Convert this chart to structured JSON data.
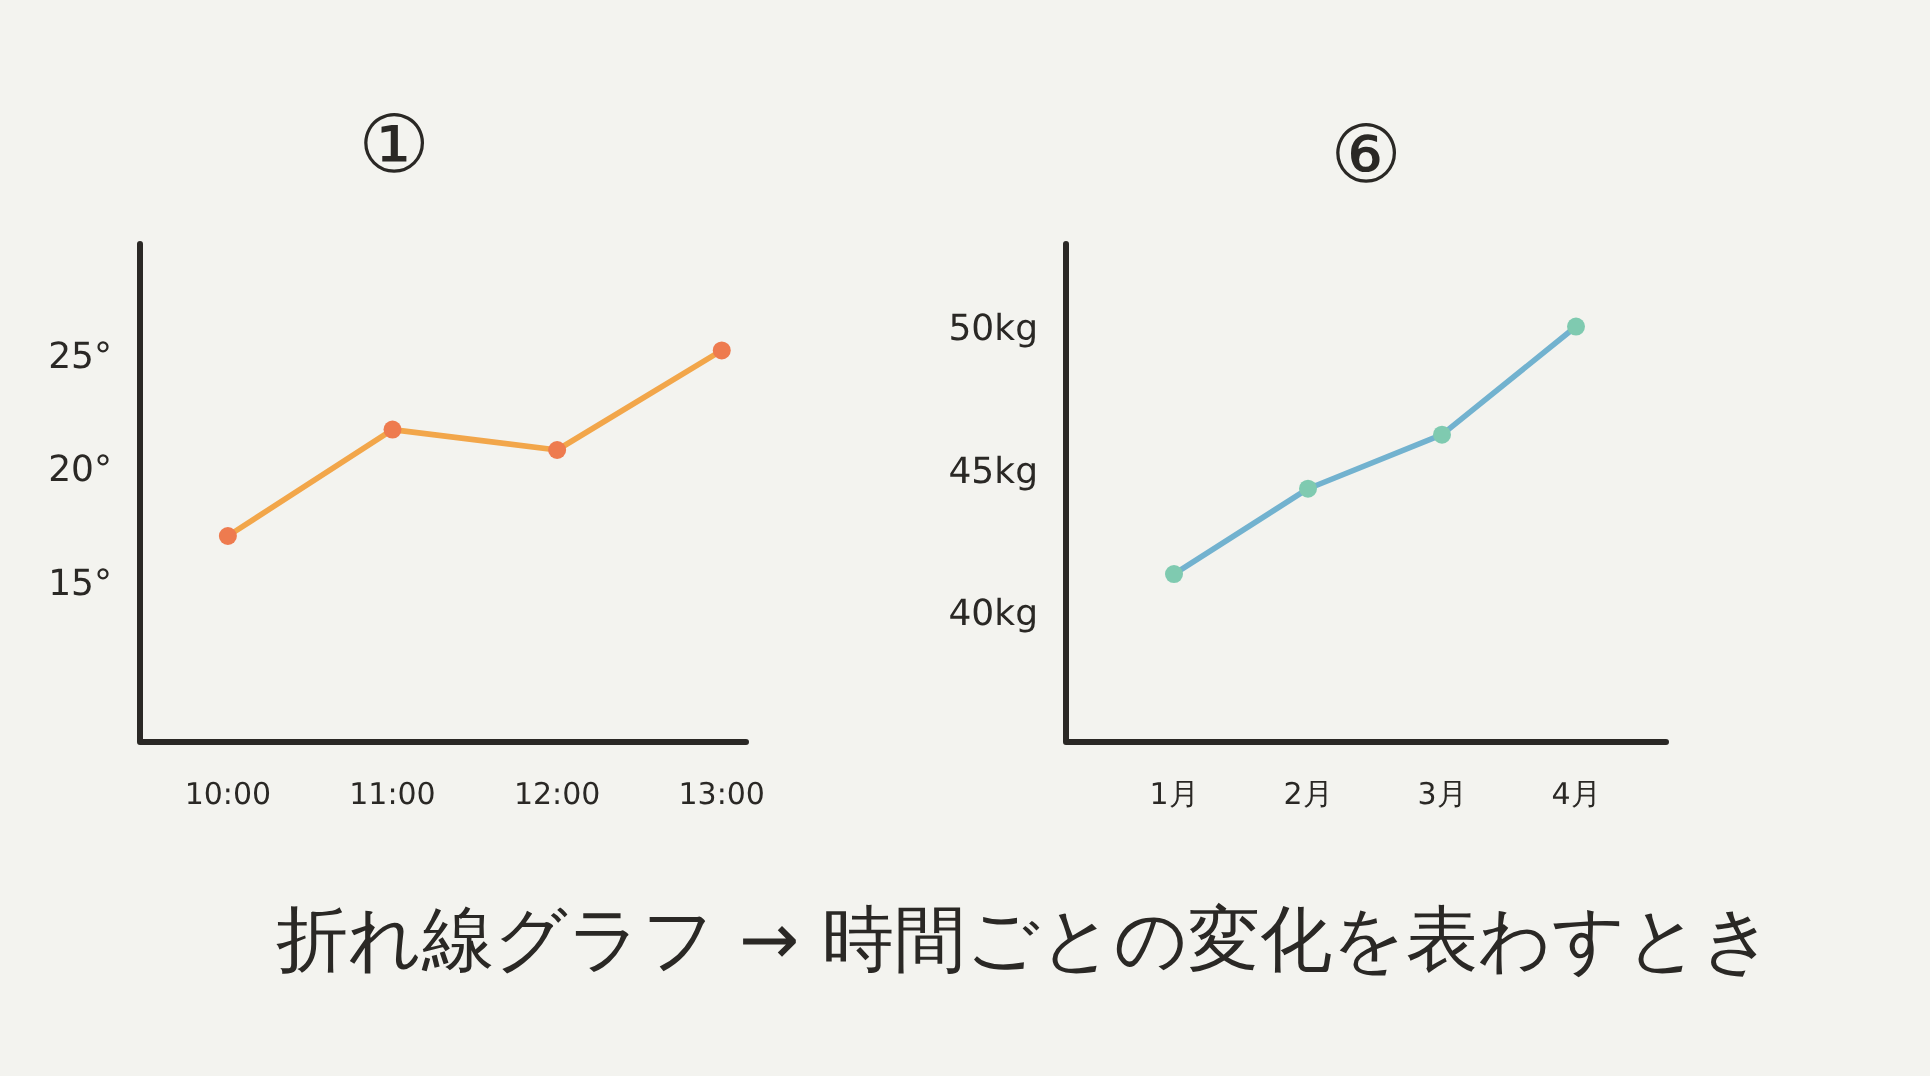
{
  "chart_data": [
    {
      "type": "line",
      "title": "①",
      "categories": [
        "10:00",
        "11:00",
        "12:00",
        "13:00"
      ],
      "series": [
        {
          "color": "#f2a64a",
          "colors": [
            "#ee7b4f",
            "#ee7b4f",
            "#ee7b4f",
            "#ee7b4f"
          ],
          "values": [
            17.1,
            21.8,
            20.9,
            25.3
          ]
        }
      ],
      "ylim": [
        8,
        30
      ],
      "yticks": [
        {
          "value": 15,
          "label": "15°"
        },
        {
          "value": 20,
          "label": "20°"
        },
        {
          "value": 25,
          "label": "25°"
        }
      ],
      "marker": "circle"
    },
    {
      "type": "line",
      "title": "⑥",
      "categories": [
        "1月",
        "2月",
        "3月",
        "4月"
      ],
      "series": [
        {
          "color": "#72b2cf",
          "colors": [
            "#7fcab0",
            "#7fcab0",
            "#7fcab0",
            "#7fcab0"
          ],
          "values": [
            41.4,
            44.4,
            46.3,
            50.1
          ]
        }
      ],
      "ylim": [
        35.5,
        53
      ],
      "yticks": [
        {
          "value": 40,
          "label": "40kg"
        },
        {
          "value": 45,
          "label": "45kg"
        },
        {
          "value": 50,
          "label": "50kg"
        }
      ],
      "marker": "circle"
    },
    {
      "type": "other",
      "annotations": [
        "折れ線グラフ → 時間ごとの変化を表わすとき"
      ]
    }
  ]
}
